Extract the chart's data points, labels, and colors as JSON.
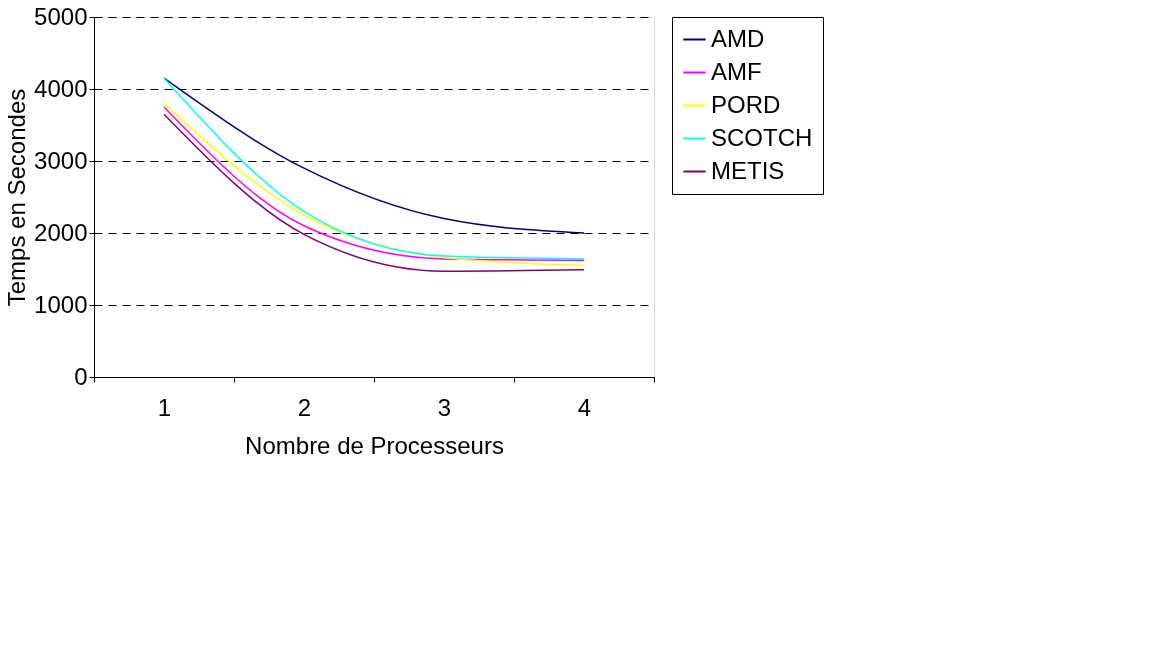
{
  "chart_data": {
    "type": "line",
    "xlabel": "Nombre de Processeurs",
    "ylabel": "Temps en Secondes",
    "categories": [
      "1",
      "2",
      "3",
      "4"
    ],
    "series": [
      {
        "name": "AMD",
        "color": "#000080",
        "values": [
          4150,
          2900,
          2200,
          2000
        ]
      },
      {
        "name": "AMF",
        "color": "#ff00ff",
        "values": [
          3750,
          2100,
          1640,
          1620
        ]
      },
      {
        "name": "PORD",
        "color": "#ffff00",
        "values": [
          3800,
          2250,
          1660,
          1550
        ]
      },
      {
        "name": "SCOTCH",
        "color": "#00ffff",
        "values": [
          4150,
          2300,
          1680,
          1640
        ]
      },
      {
        "name": "METIS",
        "color": "#800080",
        "values": [
          3650,
          1980,
          1470,
          1490
        ]
      }
    ],
    "ylim": [
      0,
      5000
    ],
    "yticks": [
      0,
      1000,
      2000,
      3000,
      4000,
      5000
    ],
    "grid": "y",
    "line_style": "solid",
    "marker": "none",
    "legend": "right"
  }
}
